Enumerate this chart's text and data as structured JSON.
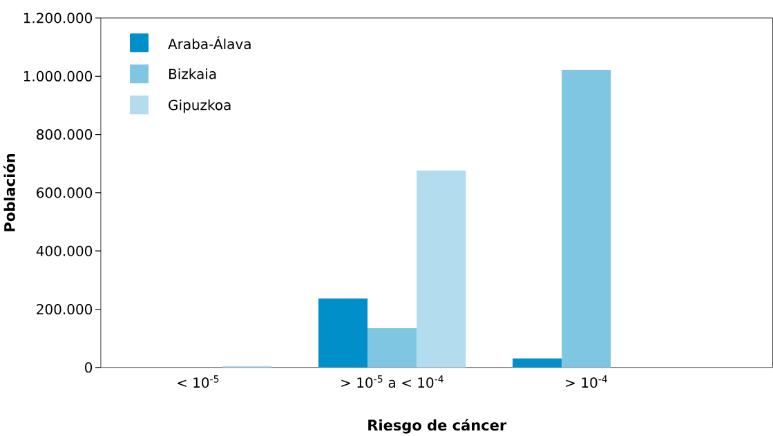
{
  "chart_data": {
    "type": "bar",
    "xlabel": "Riesgo de cáncer",
    "ylabel": "Población",
    "categories": [
      "< 10$^{-5}$",
      "> 10$^{-5}$ a < 10$^{-4}$",
      "> 10$^{-4}$"
    ],
    "series": [
      {
        "name": "Araba-Álava",
        "color": "#008fc8",
        "values": [
          0,
          237000,
          31000
        ]
      },
      {
        "name": "Bizkaia",
        "color": "#7fc6e3",
        "values": [
          0,
          135000,
          1022000
        ]
      },
      {
        "name": "Gipuzkoa",
        "color": "#b3dcee",
        "values": [
          5000,
          676000,
          0
        ]
      }
    ],
    "ylim": [
      0,
      1200000
    ],
    "yticks": [
      0,
      {
        "value": 200000,
        "label": "200.000"
      },
      {
        "value": 400000,
        "label": "400.000"
      },
      {
        "value": 600000,
        "label": "600.000"
      },
      {
        "value": 800000,
        "label": "800.000"
      },
      {
        "value": 1000000,
        "label": "1.000.000"
      },
      {
        "value": 1200000,
        "label": "1.200.000"
      }
    ],
    "legend": "top left",
    "grid": false
  }
}
